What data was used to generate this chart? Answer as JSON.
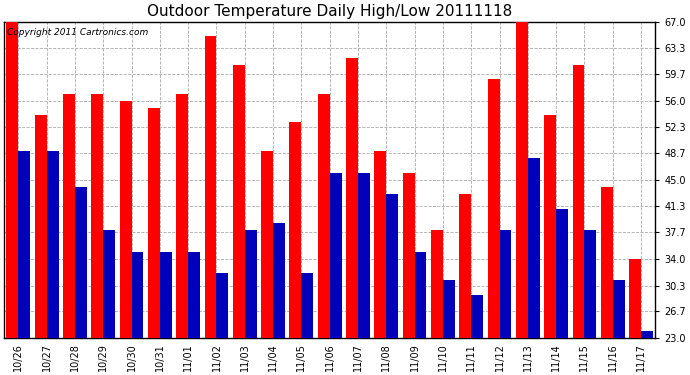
{
  "title": "Outdoor Temperature Daily High/Low 20111118",
  "copyright": "Copyright 2011 Cartronics.com",
  "dates": [
    "10/26",
    "10/27",
    "10/28",
    "10/29",
    "10/30",
    "10/31",
    "11/01",
    "11/02",
    "11/03",
    "11/04",
    "11/05",
    "11/06",
    "11/07",
    "11/08",
    "11/09",
    "11/10",
    "11/11",
    "11/12",
    "11/13",
    "11/14",
    "11/15",
    "11/16",
    "11/17"
  ],
  "highs": [
    67.0,
    54.0,
    57.0,
    57.0,
    56.0,
    55.0,
    57.0,
    65.0,
    61.0,
    49.0,
    53.0,
    57.0,
    62.0,
    49.0,
    46.0,
    38.0,
    43.0,
    59.0,
    67.0,
    54.0,
    61.0,
    44.0,
    34.0
  ],
  "lows": [
    49.0,
    49.0,
    44.0,
    38.0,
    35.0,
    35.0,
    35.0,
    32.0,
    38.0,
    39.0,
    32.0,
    46.0,
    46.0,
    43.0,
    35.0,
    31.0,
    29.0,
    38.0,
    48.0,
    41.0,
    38.0,
    31.0,
    24.0
  ],
  "high_color": "#ff0000",
  "low_color": "#0000bb",
  "bg_color": "#ffffff",
  "plot_bg_color": "#ffffff",
  "grid_color": "#aaaaaa",
  "yticks": [
    23.0,
    26.7,
    30.3,
    34.0,
    37.7,
    41.3,
    45.0,
    48.7,
    52.3,
    56.0,
    59.7,
    63.3,
    67.0
  ],
  "ymin": 23.0,
  "ymax": 67.0,
  "bar_width": 0.42,
  "title_fontsize": 11,
  "tick_fontsize": 7,
  "copyright_fontsize": 6.5
}
